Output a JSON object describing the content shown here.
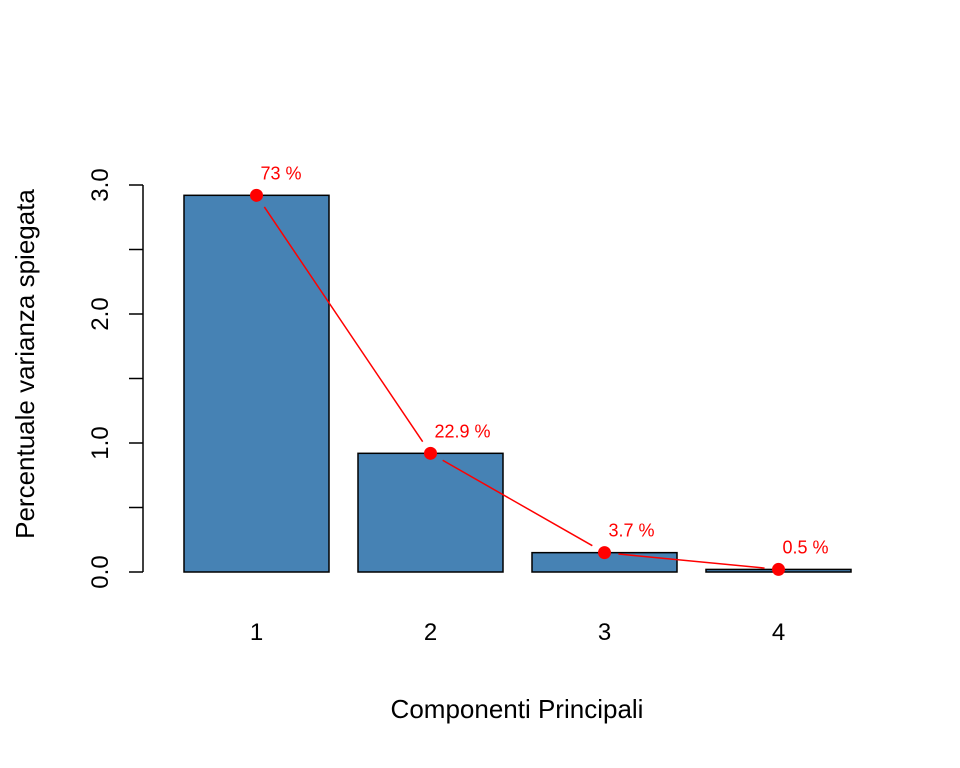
{
  "chart_data": {
    "type": "bar",
    "title": "",
    "xlabel": "Componenti Principali",
    "ylabel": "Percentuale varianza spiegata",
    "categories": [
      "1",
      "2",
      "3",
      "4"
    ],
    "values": [
      2.92,
      0.92,
      0.15,
      0.02
    ],
    "ylim": [
      0,
      3.0
    ],
    "y_ticks": [
      0.0,
      0.5,
      1.0,
      1.5,
      2.0,
      2.5,
      3.0
    ],
    "y_tick_labels": [
      "0.0",
      "1.0",
      "2.0",
      "3.0"
    ],
    "grid": false,
    "bar_color": "#4682B4",
    "overlay": {
      "type": "line",
      "color": "#FF0000",
      "labels": [
        "73 %",
        "22.9 %",
        "3.7 %",
        "0.5 %"
      ]
    }
  }
}
